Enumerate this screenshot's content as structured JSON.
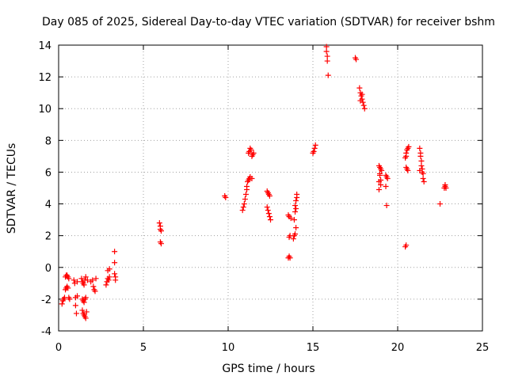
{
  "chart_data": {
    "type": "scatter",
    "title": "Day 085 of 2025, Sidereal Day-to-day VTEC variation (SDTVAR) for receiver bshm",
    "xlabel": "GPS time / hours",
    "ylabel": "SDTVAR / TECUs",
    "xlim": [
      0,
      25
    ],
    "ylim": [
      -4,
      14
    ],
    "xticks": [
      0,
      5,
      10,
      15,
      20,
      25
    ],
    "yticks": [
      -4,
      -2,
      0,
      2,
      4,
      6,
      8,
      10,
      12,
      14
    ],
    "xtick_labels": [
      "0",
      "5",
      "10",
      "15",
      "20",
      "25"
    ],
    "ytick_labels": [
      "-4",
      "-2",
      "0",
      "2",
      "4",
      "6",
      "8",
      "10",
      "12",
      "14"
    ],
    "grid": true,
    "marker": "+",
    "color": "#ff0000",
    "series": [
      {
        "name": "SDTVAR",
        "points": [
          [
            0.2,
            -2.3
          ],
          [
            0.25,
            -2.1
          ],
          [
            0.3,
            -2.0
          ],
          [
            0.35,
            -1.9
          ],
          [
            0.4,
            -1.4
          ],
          [
            0.45,
            -1.3
          ],
          [
            0.5,
            -1.2
          ],
          [
            0.55,
            -1.3
          ],
          [
            0.6,
            -1.9
          ],
          [
            0.65,
            -2.0
          ],
          [
            0.4,
            -0.6
          ],
          [
            0.45,
            -0.5
          ],
          [
            0.5,
            -0.5
          ],
          [
            0.55,
            -0.6
          ],
          [
            0.6,
            -0.7
          ],
          [
            0.9,
            -0.8
          ],
          [
            0.95,
            -1.0
          ],
          [
            1.0,
            -1.9
          ],
          [
            1.0,
            -2.4
          ],
          [
            1.05,
            -2.9
          ],
          [
            1.1,
            -0.9
          ],
          [
            1.1,
            -1.8
          ],
          [
            1.35,
            -0.7
          ],
          [
            1.4,
            -0.9
          ],
          [
            1.45,
            -1.0
          ],
          [
            1.5,
            -1.1
          ],
          [
            1.55,
            -0.8
          ],
          [
            1.6,
            -0.6
          ],
          [
            1.7,
            -0.8
          ],
          [
            1.4,
            -2.0
          ],
          [
            1.45,
            -2.1
          ],
          [
            1.5,
            -2.2
          ],
          [
            1.55,
            -2.0
          ],
          [
            1.6,
            -1.9
          ],
          [
            1.4,
            -2.7
          ],
          [
            1.45,
            -2.9
          ],
          [
            1.5,
            -3.0
          ],
          [
            1.55,
            -3.1
          ],
          [
            1.6,
            -3.2
          ],
          [
            1.65,
            -2.8
          ],
          [
            1.9,
            -0.9
          ],
          [
            2.0,
            -0.8
          ],
          [
            2.05,
            -1.2
          ],
          [
            2.1,
            -1.4
          ],
          [
            2.15,
            -1.5
          ],
          [
            2.2,
            -0.7
          ],
          [
            2.8,
            -1.1
          ],
          [
            2.85,
            -0.9
          ],
          [
            2.9,
            -0.7
          ],
          [
            2.95,
            -0.8
          ],
          [
            3.0,
            -0.6
          ],
          [
            2.9,
            -0.2
          ],
          [
            3.0,
            -0.1
          ],
          [
            3.3,
            1.0
          ],
          [
            3.3,
            0.3
          ],
          [
            3.3,
            -0.4
          ],
          [
            3.35,
            -0.6
          ],
          [
            3.35,
            -0.8
          ],
          [
            5.95,
            2.8
          ],
          [
            6.0,
            2.6
          ],
          [
            6.0,
            2.4
          ],
          [
            6.05,
            2.3
          ],
          [
            6.0,
            1.6
          ],
          [
            6.05,
            1.5
          ],
          [
            9.8,
            4.5
          ],
          [
            9.85,
            4.4
          ],
          [
            10.85,
            3.6
          ],
          [
            10.9,
            3.8
          ],
          [
            10.95,
            4.0
          ],
          [
            11.0,
            4.3
          ],
          [
            11.05,
            4.6
          ],
          [
            11.1,
            4.9
          ],
          [
            11.1,
            5.1
          ],
          [
            11.15,
            5.4
          ],
          [
            11.2,
            5.5
          ],
          [
            11.25,
            5.6
          ],
          [
            11.3,
            5.7
          ],
          [
            11.4,
            5.6
          ],
          [
            11.2,
            7.2
          ],
          [
            11.25,
            7.3
          ],
          [
            11.3,
            7.5
          ],
          [
            11.35,
            7.4
          ],
          [
            11.4,
            7.0
          ],
          [
            11.45,
            7.1
          ],
          [
            11.5,
            7.2
          ],
          [
            12.3,
            4.8
          ],
          [
            12.35,
            4.7
          ],
          [
            12.4,
            4.6
          ],
          [
            12.45,
            4.5
          ],
          [
            12.3,
            3.8
          ],
          [
            12.35,
            3.6
          ],
          [
            12.4,
            3.4
          ],
          [
            12.45,
            3.2
          ],
          [
            12.5,
            3.0
          ],
          [
            13.55,
            0.6
          ],
          [
            13.6,
            0.7
          ],
          [
            13.65,
            0.6
          ],
          [
            13.6,
            1.9
          ],
          [
            13.65,
            2.0
          ],
          [
            13.55,
            3.3
          ],
          [
            13.6,
            3.2
          ],
          [
            13.7,
            3.1
          ],
          [
            13.85,
            1.8
          ],
          [
            13.9,
            2.0
          ],
          [
            13.95,
            2.1
          ],
          [
            14.0,
            2.5
          ],
          [
            13.9,
            3.0
          ],
          [
            13.95,
            3.5
          ],
          [
            14.0,
            3.7
          ],
          [
            13.95,
            3.9
          ],
          [
            14.0,
            4.2
          ],
          [
            14.05,
            4.4
          ],
          [
            14.05,
            4.6
          ],
          [
            15.0,
            7.2
          ],
          [
            15.05,
            7.3
          ],
          [
            15.1,
            7.5
          ],
          [
            15.15,
            7.7
          ],
          [
            15.8,
            13.9
          ],
          [
            15.8,
            13.6
          ],
          [
            15.85,
            13.3
          ],
          [
            15.85,
            13.0
          ],
          [
            15.9,
            12.1
          ],
          [
            17.5,
            13.2
          ],
          [
            17.55,
            13.1
          ],
          [
            17.75,
            11.3
          ],
          [
            17.8,
            11.0
          ],
          [
            17.85,
            10.8
          ],
          [
            17.9,
            10.6
          ],
          [
            17.95,
            10.4
          ],
          [
            18.0,
            10.2
          ],
          [
            18.05,
            10.0
          ],
          [
            17.8,
            10.5
          ],
          [
            17.9,
            10.9
          ],
          [
            18.9,
            6.4
          ],
          [
            18.95,
            6.3
          ],
          [
            19.0,
            6.2
          ],
          [
            19.05,
            6.1
          ],
          [
            18.95,
            5.9
          ],
          [
            19.0,
            5.5
          ],
          [
            18.9,
            5.4
          ],
          [
            19.0,
            5.2
          ],
          [
            18.9,
            4.9
          ],
          [
            18.95,
            5.8
          ],
          [
            19.3,
            5.8
          ],
          [
            19.35,
            5.7
          ],
          [
            19.4,
            5.6
          ],
          [
            19.3,
            5.1
          ],
          [
            19.35,
            3.9
          ],
          [
            20.5,
            6.3
          ],
          [
            20.55,
            6.2
          ],
          [
            20.6,
            6.1
          ],
          [
            20.5,
            7.2
          ],
          [
            20.55,
            7.4
          ],
          [
            20.6,
            7.5
          ],
          [
            20.65,
            7.6
          ],
          [
            20.5,
            7.0
          ],
          [
            20.45,
            6.9
          ],
          [
            20.45,
            1.3
          ],
          [
            20.5,
            1.4
          ],
          [
            21.3,
            7.5
          ],
          [
            21.35,
            7.2
          ],
          [
            21.35,
            7.0
          ],
          [
            21.4,
            6.7
          ],
          [
            21.4,
            6.4
          ],
          [
            21.45,
            6.2
          ],
          [
            21.5,
            5.9
          ],
          [
            21.45,
            6.0
          ],
          [
            21.5,
            5.6
          ],
          [
            21.55,
            5.4
          ],
          [
            21.3,
            6.1
          ],
          [
            22.5,
            4.0
          ],
          [
            22.75,
            5.0
          ],
          [
            22.8,
            5.1
          ],
          [
            22.8,
            5.2
          ],
          [
            22.85,
            5.0
          ]
        ]
      }
    ]
  }
}
